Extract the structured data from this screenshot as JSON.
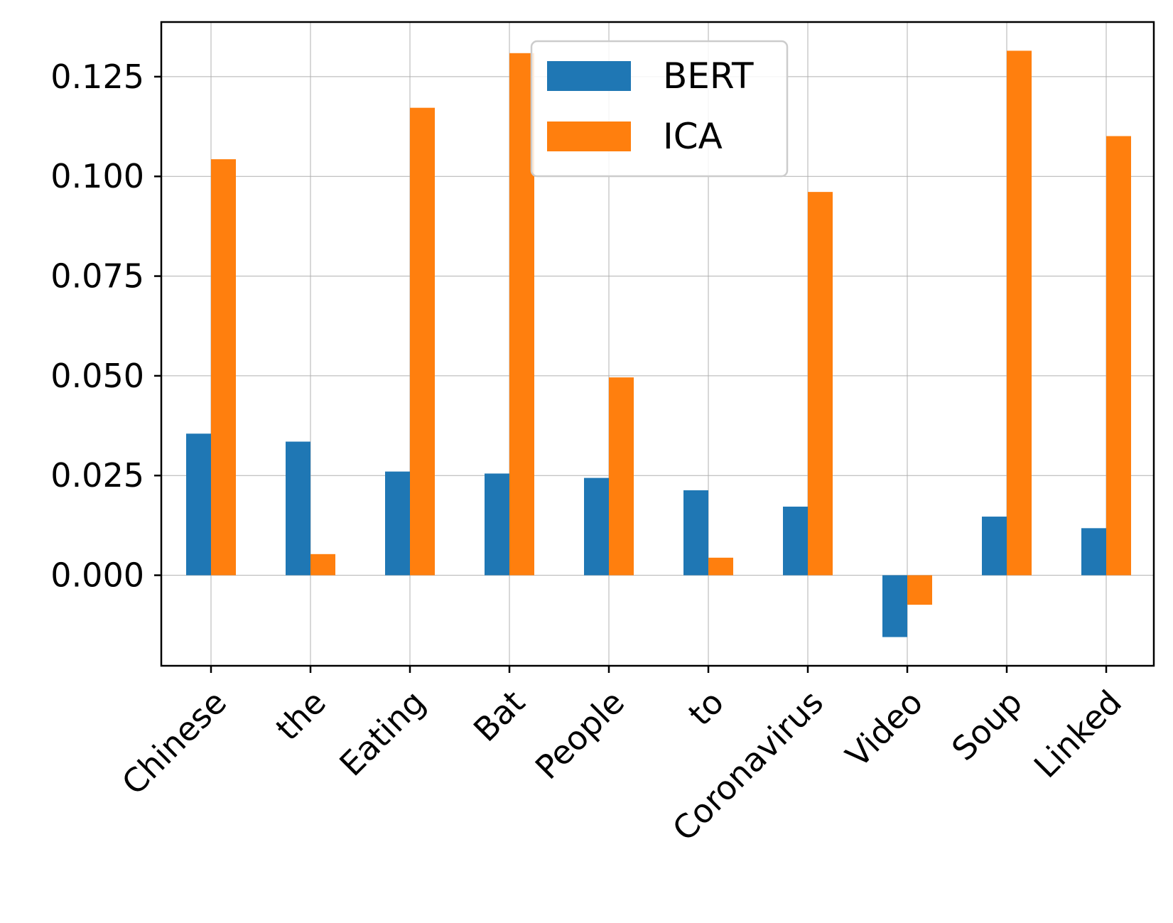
{
  "chart_data": {
    "type": "bar",
    "categories": [
      "Chinese",
      "the",
      "Eating",
      "Bat",
      "People",
      "to",
      "Coronavirus",
      "Video",
      "Soup",
      "Linked"
    ],
    "series": [
      {
        "name": "BERT",
        "color": "#1f77b4",
        "values": [
          0.0355,
          0.0335,
          0.026,
          0.0255,
          0.0244,
          0.0213,
          0.0172,
          -0.0155,
          0.0147,
          0.0118
        ]
      },
      {
        "name": "ICA",
        "color": "#ff7f0e",
        "values": [
          0.1043,
          0.0053,
          0.1172,
          0.1309,
          0.0496,
          0.0044,
          0.0961,
          -0.0074,
          0.1315,
          0.1101
        ]
      }
    ],
    "yticks": [
      "0.000",
      "0.025",
      "0.050",
      "0.075",
      "0.100",
      "0.125"
    ],
    "ylim": [
      -0.0227,
      0.1387
    ],
    "grid": true,
    "legend_position": "top-center"
  }
}
